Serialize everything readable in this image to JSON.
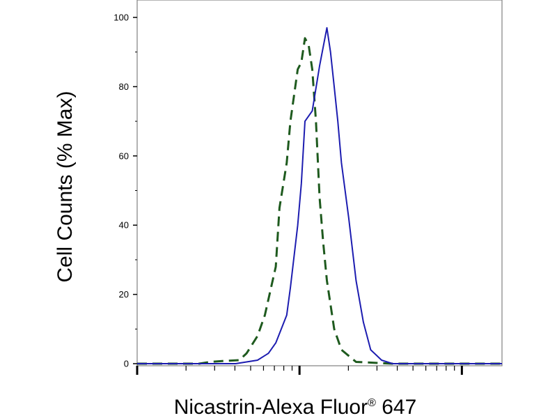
{
  "chart_data": {
    "type": "line",
    "title": "",
    "xlabel": "Nicastrin-Alexa Fluor",
    "xlabel_mark": "®",
    "xlabel_suffix": " 647",
    "ylabel": "Cell Counts (% Max)",
    "ylim": [
      0,
      100
    ],
    "yticks": [
      0,
      20,
      40,
      60,
      80,
      100
    ],
    "xscale": "log",
    "grid": false,
    "legend": "none",
    "series": [
      {
        "line_style": "dashed",
        "color": "#1e5a1e",
        "x": [
          0.0,
          0.1,
          0.17,
          0.2,
          0.24,
          0.28,
          0.3,
          0.33,
          0.35,
          0.38,
          0.39,
          0.41,
          0.42,
          0.44,
          0.45,
          0.46,
          0.47,
          0.48,
          0.49,
          0.5,
          0.51,
          0.52,
          0.54,
          0.56,
          0.6,
          0.7,
          0.8,
          1.0
        ],
        "y": [
          0,
          0,
          0,
          0.5,
          0.8,
          1,
          3,
          8,
          14,
          28,
          45,
          58,
          70,
          85,
          87,
          94,
          92,
          85,
          70,
          48,
          35,
          24,
          10,
          4,
          0.5,
          0,
          0,
          0
        ]
      },
      {
        "line_style": "solid",
        "color": "#1c1cb0",
        "x": [
          0.0,
          0.1,
          0.2,
          0.27,
          0.3,
          0.33,
          0.36,
          0.38,
          0.41,
          0.42,
          0.44,
          0.45,
          0.46,
          0.48,
          0.5,
          0.52,
          0.53,
          0.54,
          0.55,
          0.56,
          0.58,
          0.6,
          0.62,
          0.64,
          0.67,
          0.7,
          0.75,
          0.8,
          0.9,
          1.0
        ],
        "y": [
          0,
          0,
          0,
          0,
          0.5,
          1,
          3,
          6,
          14,
          22,
          40,
          52,
          70,
          73,
          86,
          97,
          90,
          80,
          70,
          58,
          42,
          24,
          12,
          4,
          1,
          0,
          0,
          0,
          0,
          0
        ]
      }
    ]
  }
}
